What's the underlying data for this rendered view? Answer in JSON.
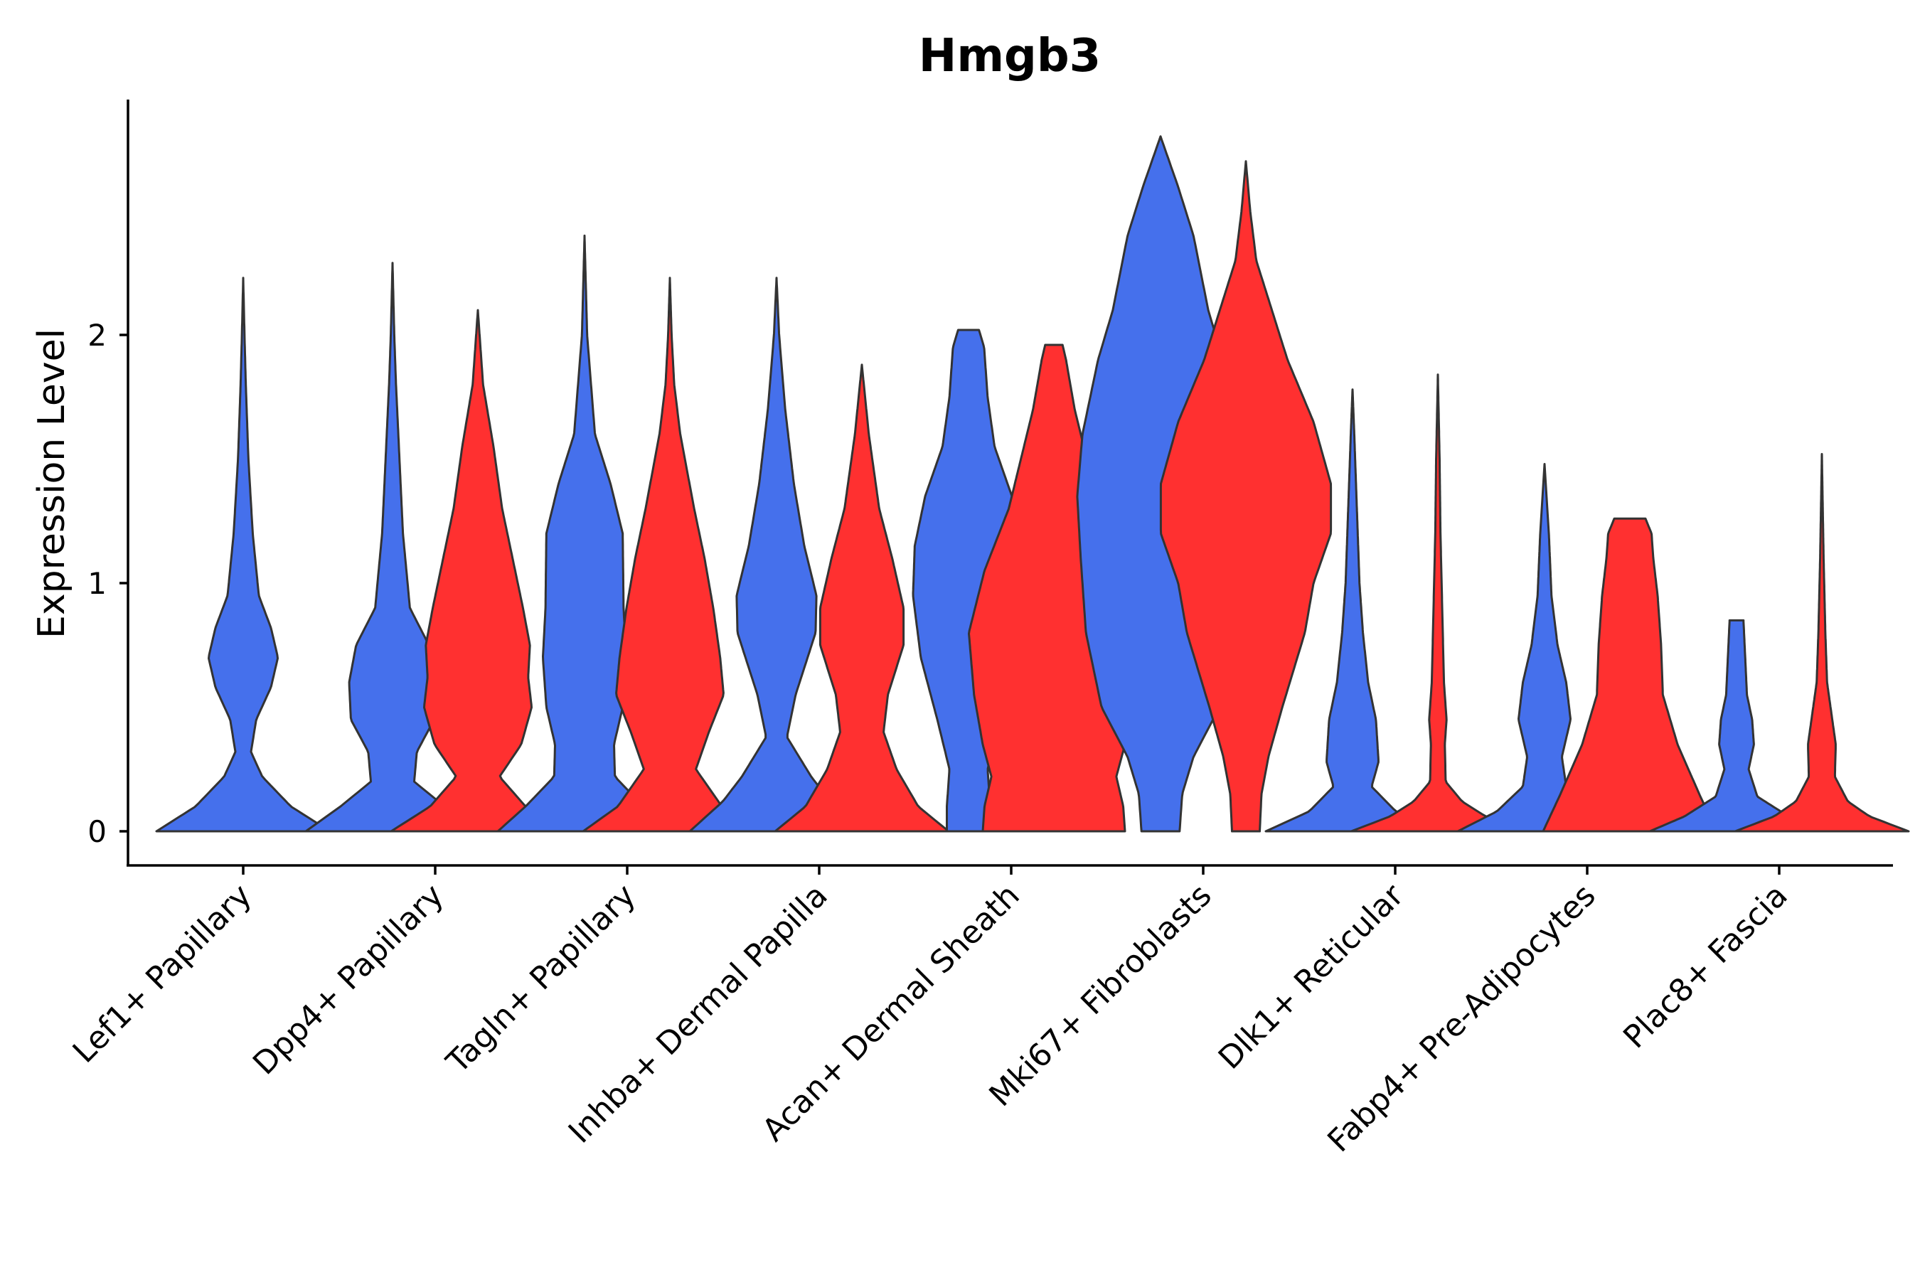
{
  "chart_data": {
    "type": "violin",
    "title": "Hmgb3",
    "xlabel": "",
    "ylabel": "Expression Level",
    "ylim": [
      -0.14,
      2.95
    ],
    "yticks": [
      0,
      1,
      2
    ],
    "grid": false,
    "legend": "none",
    "categories": [
      "Lef1+ Papillary",
      "Dpp4+ Papillary",
      "Tagln+ Papillary",
      "Inhba+ Dermal Papilla",
      "Acan+ Dermal Sheath",
      "Mki67+ Fibroblasts",
      "Dlk1+ Reticular",
      "Fabp4+ Pre-Adipocytes",
      "Plac8+ Fascia"
    ],
    "series_colors": [
      "#4570ec",
      "#ff3030"
    ],
    "violins": [
      {
        "category": 0,
        "series": 0,
        "max": 2.23,
        "profile": [
          [
            0,
            1
          ],
          [
            0.1,
            0.55
          ],
          [
            0.22,
            0.22
          ],
          [
            0.32,
            0.09
          ],
          [
            0.45,
            0.15
          ],
          [
            0.58,
            0.32
          ],
          [
            0.7,
            0.4
          ],
          [
            0.82,
            0.32
          ],
          [
            0.95,
            0.18
          ],
          [
            1.2,
            0.11
          ],
          [
            1.5,
            0.06
          ],
          [
            1.8,
            0.03
          ],
          [
            2.0,
            0.015
          ],
          [
            2.23,
            0
          ]
        ]
      },
      {
        "category": 1,
        "series": 0,
        "max": 2.29,
        "profile": [
          [
            0,
            1
          ],
          [
            0.1,
            0.6
          ],
          [
            0.2,
            0.25
          ],
          [
            0.32,
            0.28
          ],
          [
            0.45,
            0.48
          ],
          [
            0.6,
            0.5
          ],
          [
            0.75,
            0.42
          ],
          [
            0.9,
            0.2
          ],
          [
            1.2,
            0.12
          ],
          [
            1.5,
            0.08
          ],
          [
            1.8,
            0.04
          ],
          [
            2.0,
            0.02
          ],
          [
            2.29,
            0
          ]
        ]
      },
      {
        "category": 1,
        "series": 1,
        "max": 2.1,
        "profile": [
          [
            0,
            1
          ],
          [
            0.1,
            0.55
          ],
          [
            0.22,
            0.25
          ],
          [
            0.35,
            0.5
          ],
          [
            0.5,
            0.62
          ],
          [
            0.62,
            0.58
          ],
          [
            0.75,
            0.6
          ],
          [
            0.9,
            0.52
          ],
          [
            1.1,
            0.4
          ],
          [
            1.3,
            0.28
          ],
          [
            1.55,
            0.18
          ],
          [
            1.8,
            0.06
          ],
          [
            2.1,
            0
          ]
        ]
      },
      {
        "category": 2,
        "series": 0,
        "max": 2.4,
        "profile": [
          [
            0,
            1
          ],
          [
            0.1,
            0.68
          ],
          [
            0.22,
            0.35
          ],
          [
            0.35,
            0.34
          ],
          [
            0.5,
            0.44
          ],
          [
            0.7,
            0.48
          ],
          [
            0.9,
            0.45
          ],
          [
            1.2,
            0.44
          ],
          [
            1.4,
            0.3
          ],
          [
            1.6,
            0.12
          ],
          [
            2.0,
            0.03
          ],
          [
            2.4,
            0
          ]
        ]
      },
      {
        "category": 2,
        "series": 1,
        "max": 2.23,
        "profile": [
          [
            0,
            1
          ],
          [
            0.1,
            0.6
          ],
          [
            0.25,
            0.3
          ],
          [
            0.4,
            0.45
          ],
          [
            0.55,
            0.62
          ],
          [
            0.7,
            0.58
          ],
          [
            0.9,
            0.5
          ],
          [
            1.1,
            0.4
          ],
          [
            1.3,
            0.28
          ],
          [
            1.6,
            0.12
          ],
          [
            1.8,
            0.05
          ],
          [
            2.0,
            0.02
          ],
          [
            2.23,
            0
          ]
        ]
      },
      {
        "category": 3,
        "series": 0,
        "max": 2.23,
        "profile": [
          [
            0,
            1
          ],
          [
            0.12,
            0.62
          ],
          [
            0.22,
            0.4
          ],
          [
            0.38,
            0.12
          ],
          [
            0.55,
            0.22
          ],
          [
            0.8,
            0.45
          ],
          [
            0.95,
            0.46
          ],
          [
            1.15,
            0.32
          ],
          [
            1.4,
            0.2
          ],
          [
            1.7,
            0.1
          ],
          [
            2.0,
            0.03
          ],
          [
            2.23,
            0
          ]
        ]
      },
      {
        "category": 3,
        "series": 1,
        "max": 1.88,
        "profile": [
          [
            0,
            1
          ],
          [
            0.1,
            0.65
          ],
          [
            0.25,
            0.4
          ],
          [
            0.4,
            0.25
          ],
          [
            0.55,
            0.3
          ],
          [
            0.75,
            0.48
          ],
          [
            0.9,
            0.48
          ],
          [
            1.1,
            0.35
          ],
          [
            1.3,
            0.2
          ],
          [
            1.6,
            0.08
          ],
          [
            1.88,
            0
          ]
        ]
      },
      {
        "category": 4,
        "series": 0,
        "max": 2.02,
        "profile": [
          [
            0,
            0.25
          ],
          [
            0.1,
            0.25
          ],
          [
            0.25,
            0.22
          ],
          [
            0.45,
            0.36
          ],
          [
            0.7,
            0.55
          ],
          [
            0.95,
            0.64
          ],
          [
            1.15,
            0.62
          ],
          [
            1.35,
            0.5
          ],
          [
            1.55,
            0.3
          ],
          [
            1.75,
            0.22
          ],
          [
            1.95,
            0.18
          ],
          [
            2.02,
            0.12
          ]
        ]
      },
      {
        "category": 4,
        "series": 1,
        "max": 1.96,
        "profile": [
          [
            0,
            0.82
          ],
          [
            0.1,
            0.8
          ],
          [
            0.22,
            0.72
          ],
          [
            0.35,
            0.82
          ],
          [
            0.55,
            0.92
          ],
          [
            0.8,
            0.98
          ],
          [
            1.05,
            0.8
          ],
          [
            1.3,
            0.52
          ],
          [
            1.5,
            0.38
          ],
          [
            1.7,
            0.24
          ],
          [
            1.9,
            0.14
          ],
          [
            1.96,
            0.1
          ]
        ]
      },
      {
        "category": 5,
        "series": 0,
        "max": 2.8,
        "profile": [
          [
            0,
            0.22
          ],
          [
            0.15,
            0.25
          ],
          [
            0.3,
            0.38
          ],
          [
            0.5,
            0.68
          ],
          [
            0.8,
            0.86
          ],
          [
            1.1,
            0.92
          ],
          [
            1.35,
            0.96
          ],
          [
            1.6,
            0.9
          ],
          [
            1.9,
            0.72
          ],
          [
            2.1,
            0.55
          ],
          [
            2.4,
            0.38
          ],
          [
            2.6,
            0.2
          ],
          [
            2.8,
            0
          ]
        ]
      },
      {
        "category": 5,
        "series": 1,
        "max": 2.7,
        "profile": [
          [
            0,
            0.16
          ],
          [
            0.15,
            0.18
          ],
          [
            0.3,
            0.26
          ],
          [
            0.5,
            0.42
          ],
          [
            0.8,
            0.68
          ],
          [
            1.0,
            0.78
          ],
          [
            1.2,
            0.98
          ],
          [
            1.4,
            0.98
          ],
          [
            1.65,
            0.78
          ],
          [
            1.9,
            0.48
          ],
          [
            2.1,
            0.3
          ],
          [
            2.3,
            0.12
          ],
          [
            2.5,
            0.05
          ],
          [
            2.7,
            0
          ]
        ]
      },
      {
        "category": 6,
        "series": 0,
        "max": 1.78,
        "profile": [
          [
            0,
            1
          ],
          [
            0.08,
            0.5
          ],
          [
            0.18,
            0.22
          ],
          [
            0.28,
            0.3
          ],
          [
            0.45,
            0.27
          ],
          [
            0.6,
            0.18
          ],
          [
            0.8,
            0.12
          ],
          [
            1.0,
            0.08
          ],
          [
            1.3,
            0.05
          ],
          [
            1.6,
            0.02
          ],
          [
            1.78,
            0
          ]
        ]
      },
      {
        "category": 6,
        "series": 1,
        "max": 1.84,
        "profile": [
          [
            0,
            1
          ],
          [
            0.06,
            0.55
          ],
          [
            0.12,
            0.28
          ],
          [
            0.2,
            0.09
          ],
          [
            0.35,
            0.08
          ],
          [
            0.45,
            0.1
          ],
          [
            0.6,
            0.07
          ],
          [
            0.9,
            0.05
          ],
          [
            1.2,
            0.03
          ],
          [
            1.5,
            0.02
          ],
          [
            1.84,
            0
          ]
        ]
      },
      {
        "category": 7,
        "series": 0,
        "max": 1.48,
        "profile": [
          [
            0,
            1
          ],
          [
            0.08,
            0.55
          ],
          [
            0.18,
            0.25
          ],
          [
            0.3,
            0.2
          ],
          [
            0.45,
            0.3
          ],
          [
            0.6,
            0.25
          ],
          [
            0.75,
            0.15
          ],
          [
            0.95,
            0.08
          ],
          [
            1.2,
            0.05
          ],
          [
            1.48,
            0
          ]
        ]
      },
      {
        "category": 7,
        "series": 1,
        "max": 1.26,
        "profile": [
          [
            0,
            1
          ],
          [
            0.15,
            0.8
          ],
          [
            0.35,
            0.55
          ],
          [
            0.55,
            0.38
          ],
          [
            0.75,
            0.36
          ],
          [
            0.95,
            0.32
          ],
          [
            1.1,
            0.27
          ],
          [
            1.2,
            0.25
          ],
          [
            1.26,
            0.18
          ]
        ]
      },
      {
        "category": 8,
        "series": 0,
        "max": 0.85,
        "profile": [
          [
            0,
            1
          ],
          [
            0.06,
            0.6
          ],
          [
            0.14,
            0.24
          ],
          [
            0.25,
            0.14
          ],
          [
            0.35,
            0.2
          ],
          [
            0.45,
            0.18
          ],
          [
            0.55,
            0.12
          ],
          [
            0.7,
            0.1
          ],
          [
            0.85,
            0.08
          ]
        ]
      },
      {
        "category": 8,
        "series": 1,
        "max": 1.52,
        "profile": [
          [
            0,
            1
          ],
          [
            0.06,
            0.55
          ],
          [
            0.12,
            0.3
          ],
          [
            0.22,
            0.15
          ],
          [
            0.35,
            0.16
          ],
          [
            0.45,
            0.12
          ],
          [
            0.6,
            0.06
          ],
          [
            0.8,
            0.04
          ],
          [
            1.1,
            0.02
          ],
          [
            1.52,
            0
          ]
        ]
      }
    ]
  }
}
